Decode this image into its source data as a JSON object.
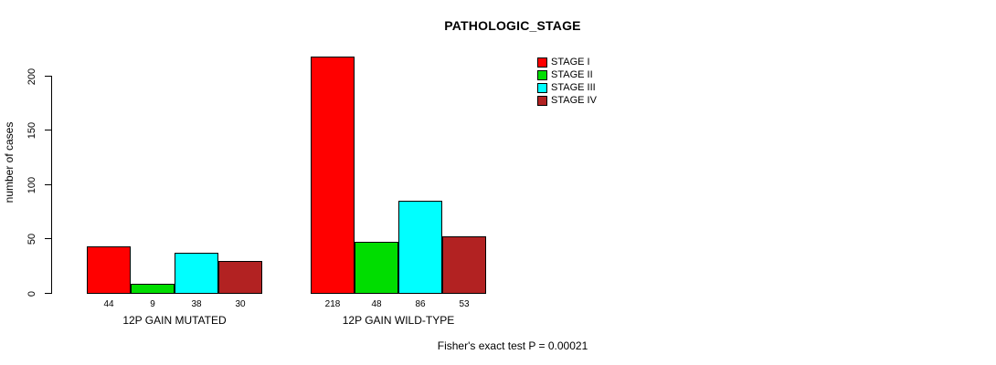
{
  "chart_data": {
    "type": "bar",
    "title": "PATHOLOGIC_STAGE",
    "xlabel": "",
    "ylabel": "number of cases",
    "ylim": [
      0,
      220
    ],
    "yticks": [
      0,
      50,
      100,
      150,
      200
    ],
    "grid": false,
    "categories": [
      "12P GAIN MUTATED",
      "12P GAIN WILD-TYPE"
    ],
    "series": [
      {
        "name": "STAGE I",
        "color": "#ff0000",
        "values": [
          44,
          218
        ]
      },
      {
        "name": "STAGE II",
        "color": "#00dd00",
        "values": [
          9,
          48
        ]
      },
      {
        "name": "STAGE III",
        "color": "#00ffff",
        "values": [
          38,
          86
        ]
      },
      {
        "name": "STAGE IV",
        "color": "#b22222",
        "values": [
          30,
          53
        ]
      }
    ],
    "legend_position": "top-right",
    "footnote": "Fisher's exact test P = 0.00021"
  }
}
